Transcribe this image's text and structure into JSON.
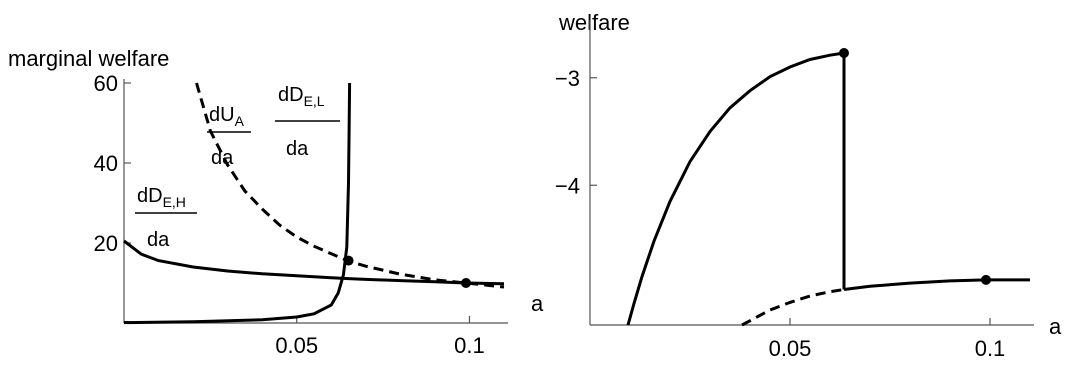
{
  "chart_data": [
    {
      "type": "line",
      "title": "",
      "ylabel": "marginal welfare",
      "xlabel": "a",
      "xlim": [
        0,
        0.11
      ],
      "ylim": [
        0,
        60
      ],
      "xticks": [
        0.05,
        0.1
      ],
      "xtick_labels": [
        "0.05",
        "0.1"
      ],
      "yticks": [
        20,
        40,
        60
      ],
      "ytick_labels": [
        "20",
        "40",
        "60"
      ],
      "grid": false,
      "annotations": [
        {
          "text": "dD",
          "sub": "E,H",
          "den": "da"
        },
        {
          "text": "dU",
          "sub": "A",
          "den": "da"
        },
        {
          "text": "dD",
          "sub": "E,L",
          "den": "da"
        }
      ],
      "series": [
        {
          "style": "solid",
          "x": [
            0,
            0.005,
            0.01,
            0.02,
            0.03,
            0.04,
            0.05,
            0.06,
            0.065,
            0.07,
            0.08,
            0.09,
            0.099,
            0.11
          ],
          "y": [
            20.5,
            17.2,
            15.6,
            14.0,
            13.0,
            12.3,
            11.8,
            11.3,
            11.1,
            10.9,
            10.6,
            10.3,
            10.0,
            9.8
          ]
        },
        {
          "style": "dashed",
          "x": [
            0.021,
            0.025,
            0.03,
            0.035,
            0.04,
            0.045,
            0.05,
            0.055,
            0.06,
            0.065,
            0.07,
            0.08,
            0.09,
            0.099,
            0.11
          ],
          "y": [
            60,
            48,
            39.5,
            33,
            28.5,
            24.5,
            21.5,
            19.2,
            17.3,
            15.5,
            14.2,
            12.2,
            10.8,
            10.0,
            9.0
          ]
        },
        {
          "style": "solid",
          "x": [
            0,
            0.02,
            0.04,
            0.05,
            0.055,
            0.06,
            0.062,
            0.0635,
            0.0645,
            0.065,
            0.0652,
            0.0653
          ],
          "y": [
            0.1,
            0.3,
            0.8,
            1.5,
            2.3,
            4.5,
            7.5,
            12,
            19,
            35,
            50,
            60
          ]
        }
      ],
      "points": [
        {
          "x": 0.065,
          "y": 15.6
        },
        {
          "x": 0.099,
          "y": 10.0
        }
      ]
    },
    {
      "type": "line",
      "title": "",
      "ylabel": "welfare",
      "xlabel": "a",
      "xlim": [
        0,
        0.11
      ],
      "ylim": [
        -5.3,
        -2.5
      ],
      "xticks": [
        0.05,
        0.1
      ],
      "xtick_labels": [
        "0.05",
        "0.1"
      ],
      "yticks": [
        -4,
        -3
      ],
      "ytick_labels": [
        "−4",
        "−3"
      ],
      "grid": false,
      "series": [
        {
          "style": "solid",
          "x": [
            0.0095,
            0.011,
            0.013,
            0.016,
            0.02,
            0.025,
            0.03,
            0.035,
            0.04,
            0.045,
            0.05,
            0.055,
            0.06,
            0.0635
          ],
          "y": [
            -5.3,
            -5.1,
            -4.85,
            -4.52,
            -4.15,
            -3.78,
            -3.5,
            -3.28,
            -3.12,
            -2.99,
            -2.9,
            -2.83,
            -2.79,
            -2.77
          ]
        },
        {
          "style": "solid",
          "x": [
            0.0635,
            0.0635
          ],
          "y": [
            -2.77,
            -4.97
          ]
        },
        {
          "style": "solid",
          "x": [
            0.0635,
            0.07,
            0.08,
            0.09,
            0.099,
            0.11
          ],
          "y": [
            -4.97,
            -4.94,
            -4.91,
            -4.89,
            -4.88,
            -4.88
          ]
        },
        {
          "style": "dashed",
          "x": [
            0.038,
            0.045,
            0.05,
            0.055,
            0.06,
            0.0635
          ],
          "y": [
            -5.3,
            -5.16,
            -5.09,
            -5.03,
            -4.99,
            -4.97
          ]
        }
      ],
      "points": [
        {
          "x": 0.0635,
          "y": -2.77
        },
        {
          "x": 0.099,
          "y": -4.88
        }
      ]
    }
  ]
}
